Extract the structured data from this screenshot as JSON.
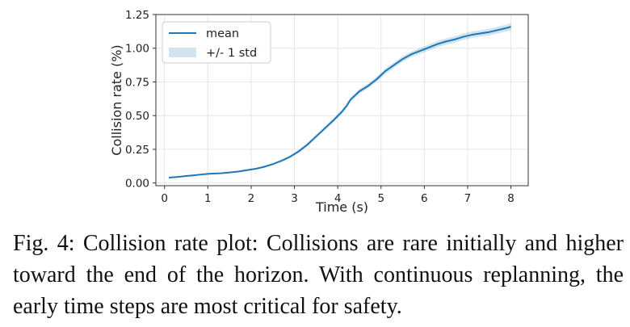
{
  "chart_data": {
    "type": "line",
    "xlabel": "Time (s)",
    "ylabel": "Collision rate (%)",
    "xlim": [
      -0.2,
      8.4
    ],
    "ylim": [
      -0.02,
      1.25
    ],
    "xticks": [
      0,
      1,
      2,
      3,
      4,
      5,
      6,
      7,
      8
    ],
    "yticks": [
      0.0,
      0.25,
      0.5,
      0.75,
      1.0,
      1.25
    ],
    "ytick_labels": [
      "0.00",
      "0.25",
      "0.50",
      "0.75",
      "1.00",
      "1.25"
    ],
    "grid": true,
    "legend_position": "top-left",
    "series": [
      {
        "name": "mean",
        "color": "#1f77b4",
        "x": [
          0.1,
          0.3,
          0.5,
          0.7,
          0.9,
          1.1,
          1.3,
          1.5,
          1.7,
          1.9,
          2.1,
          2.3,
          2.5,
          2.7,
          2.9,
          3.1,
          3.3,
          3.5,
          3.7,
          3.9,
          4.1,
          4.2,
          4.3,
          4.5,
          4.7,
          4.9,
          5.1,
          5.3,
          5.5,
          5.7,
          5.9,
          6.1,
          6.3,
          6.5,
          6.7,
          6.9,
          7.1,
          7.3,
          7.5,
          7.7,
          7.9,
          8.0
        ],
        "y": [
          0.04,
          0.045,
          0.052,
          0.058,
          0.065,
          0.07,
          0.072,
          0.078,
          0.085,
          0.095,
          0.105,
          0.12,
          0.14,
          0.165,
          0.195,
          0.235,
          0.285,
          0.345,
          0.405,
          0.465,
          0.53,
          0.57,
          0.62,
          0.68,
          0.72,
          0.77,
          0.83,
          0.875,
          0.92,
          0.955,
          0.98,
          1.005,
          1.03,
          1.05,
          1.065,
          1.085,
          1.1,
          1.11,
          1.12,
          1.135,
          1.15,
          1.16
        ]
      }
    ],
    "band": {
      "name": "+/- 1 std",
      "color": "#1f77b4",
      "opacity": 0.2,
      "std": [
        0.004,
        0.004,
        0.004,
        0.004,
        0.004,
        0.005,
        0.005,
        0.005,
        0.005,
        0.006,
        0.006,
        0.007,
        0.008,
        0.009,
        0.01,
        0.011,
        0.012,
        0.013,
        0.014,
        0.015,
        0.016,
        0.016,
        0.017,
        0.018,
        0.018,
        0.019,
        0.02,
        0.02,
        0.021,
        0.021,
        0.022,
        0.022,
        0.023,
        0.023,
        0.023,
        0.024,
        0.024,
        0.024,
        0.025,
        0.025,
        0.025,
        0.026
      ]
    }
  },
  "legend": {
    "mean_label": "mean",
    "band_label": "+/- 1 std"
  },
  "caption": "Fig. 4: Collision rate plot: Collisions are rare initially and higher toward the end of the horizon. With continuous replanning, the early time steps are most critical for safety."
}
